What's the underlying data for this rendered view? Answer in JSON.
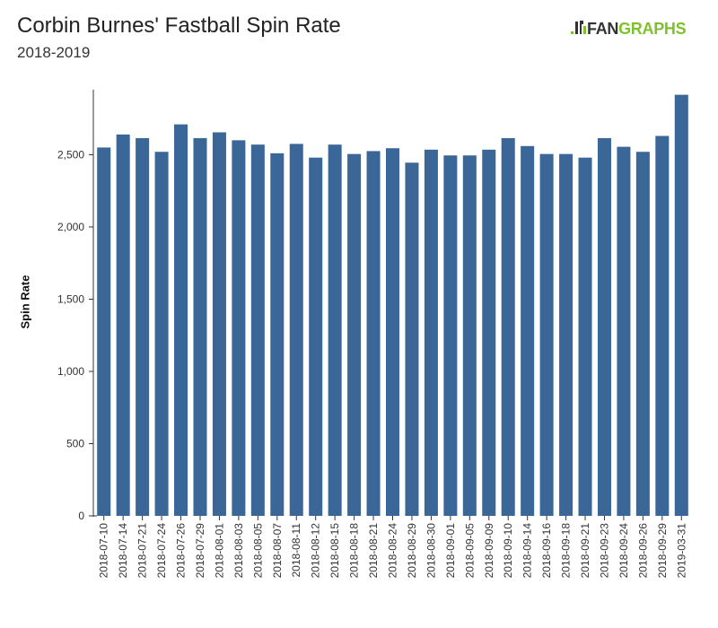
{
  "header": {
    "title": "Corbin Burnes' Fastball Spin Rate",
    "subtitle": "2018-2019"
  },
  "logo": {
    "icon": "fangraphs-logo-icon",
    "text_part1": "FAN",
    "text_part2": "GRAPHS",
    "colors": {
      "fan": "#333333",
      "graphs": "#7ec22b"
    }
  },
  "chart_data": {
    "type": "bar",
    "title": "Corbin Burnes' Fastball Spin Rate",
    "subtitle": "2018-2019",
    "xlabel": "",
    "ylabel": "Spin Rate",
    "ylim": [
      0,
      2950
    ],
    "yticks": [
      0,
      500,
      1000,
      1500,
      2000,
      2500
    ],
    "ytick_labels": [
      "0",
      "500",
      "1,000",
      "1,500",
      "2,000",
      "2,500"
    ],
    "grid": false,
    "bar_color": "#3a6698",
    "categories": [
      "2018-07-10",
      "2018-07-14",
      "2018-07-21",
      "2018-07-24",
      "2018-07-26",
      "2018-07-29",
      "2018-08-01",
      "2018-08-03",
      "2018-08-05",
      "2018-08-07",
      "2018-08-11",
      "2018-08-12",
      "2018-08-15",
      "2018-08-18",
      "2018-08-21",
      "2018-08-24",
      "2018-08-29",
      "2018-08-30",
      "2018-09-01",
      "2018-09-05",
      "2018-09-09",
      "2018-09-10",
      "2018-09-14",
      "2018-09-16",
      "2018-09-18",
      "2018-09-21",
      "2018-09-23",
      "2018-09-24",
      "2018-09-26",
      "2018-09-29",
      "2019-03-31"
    ],
    "values": [
      2550,
      2640,
      2615,
      2520,
      2710,
      2615,
      2655,
      2600,
      2570,
      2510,
      2575,
      2480,
      2570,
      2505,
      2525,
      2545,
      2445,
      2535,
      2495,
      2495,
      2535,
      2615,
      2560,
      2505,
      2505,
      2480,
      2615,
      2555,
      2520,
      2630,
      2915
    ]
  }
}
